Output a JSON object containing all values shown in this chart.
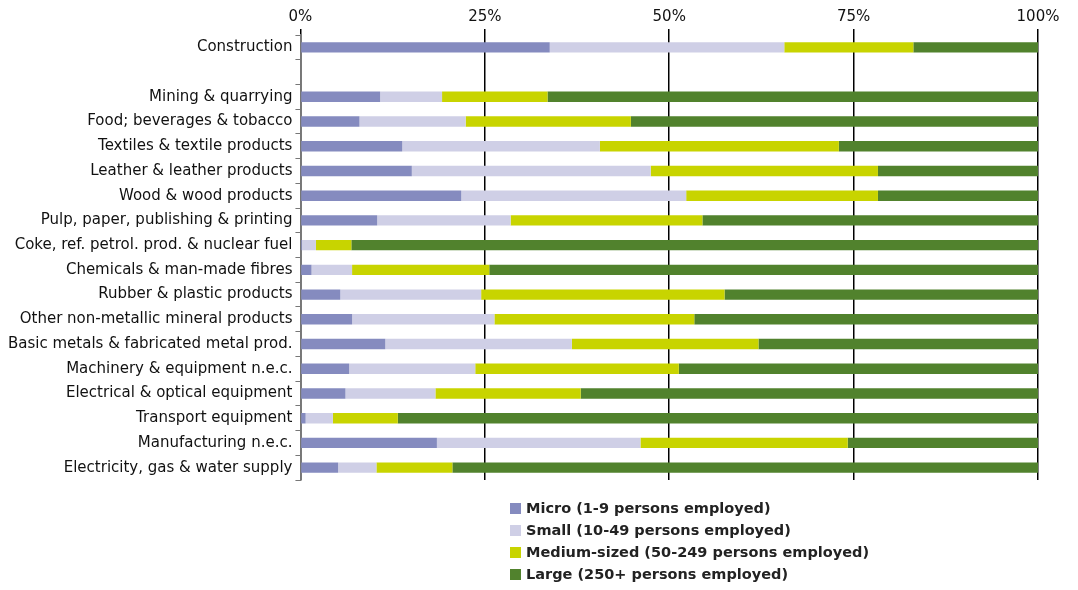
{
  "chart_data": {
    "type": "bar",
    "orientation": "horizontal",
    "stacked": true,
    "categories": [
      "Construction",
      null,
      "Mining & quarrying",
      "Food; beverages & tobacco",
      "Textiles & textile products",
      "Leather & leather products",
      "Wood & wood products",
      "Pulp, paper, publishing & printing",
      "Coke, ref. petrol. prod. & nuclear fuel",
      "Chemicals & man-made fibres",
      "Rubber & plastic products",
      "Other non-metallic mineral products",
      "Basic metals & fabricated metal prod.",
      "Machinery & equipment n.e.c.",
      "Electrical & optical equipment",
      "Transport equipment",
      "Manufacturing n.e.c.",
      "Electricity, gas & water supply"
    ],
    "series": [
      {
        "name": "Micro (1-9 persons employed)",
        "color": "#858bbf",
        "values": [
          33.8,
          null,
          10.8,
          8.0,
          13.8,
          15.1,
          21.8,
          10.4,
          0.2,
          1.5,
          5.4,
          7.0,
          11.5,
          6.6,
          6.1,
          0.7,
          18.5,
          5.1
        ]
      },
      {
        "name": "Small (10-49 persons employed)",
        "color": "#cfcfe6",
        "values": [
          31.8,
          null,
          8.4,
          14.4,
          26.8,
          32.4,
          30.5,
          18.1,
          1.9,
          5.5,
          19.1,
          19.3,
          25.3,
          17.1,
          12.2,
          3.7,
          27.6,
          5.2
        ]
      },
      {
        "name": "Medium-sized (50-249 persons employed)",
        "color": "#c8d400",
        "values": [
          17.5,
          null,
          14.3,
          22.4,
          32.4,
          30.8,
          26.0,
          26.0,
          4.8,
          18.6,
          33.0,
          27.1,
          25.3,
          27.6,
          19.7,
          8.8,
          28.1,
          10.3
        ]
      },
      {
        "name": "Large (250+ persons employed)",
        "color": "#51822d",
        "values": [
          16.9,
          null,
          66.5,
          55.2,
          27.0,
          21.7,
          21.7,
          45.5,
          93.1,
          74.4,
          42.5,
          46.6,
          37.9,
          48.7,
          62.0,
          86.8,
          25.8,
          79.4
        ]
      }
    ],
    "xlim": [
      0,
      100
    ],
    "xticks": [
      {
        "value": 0,
        "label": "0%"
      },
      {
        "value": 25,
        "label": "25%"
      },
      {
        "value": 50,
        "label": "50%"
      },
      {
        "value": 75,
        "label": "75%"
      },
      {
        "value": 100,
        "label": "100%"
      }
    ],
    "grid": "x",
    "legend": "bottom"
  }
}
